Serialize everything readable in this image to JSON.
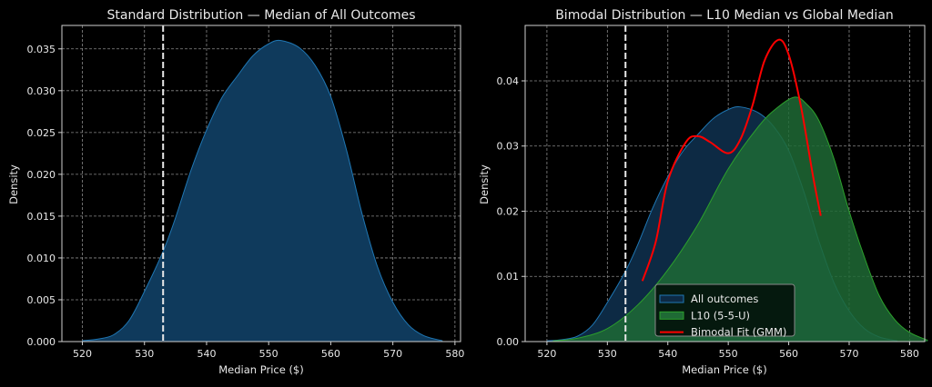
{
  "chart_data": [
    {
      "type": "area",
      "title": "Standard Distribution — Median of All Outcomes",
      "xlabel": "Median Price ($)",
      "ylabel": "Density",
      "xlim": [
        516.7,
        580.9
      ],
      "ylim": [
        0,
        0.0378
      ],
      "xticks": [
        520,
        530,
        540,
        550,
        560,
        570,
        580
      ],
      "yticks": [
        0.0,
        0.005,
        0.01,
        0.015,
        0.02,
        0.025,
        0.03,
        0.035
      ],
      "ytick_labels": [
        "0.000",
        "0.005",
        "0.010",
        "0.015",
        "0.020",
        "0.025",
        "0.030",
        "0.035"
      ],
      "grid": true,
      "vline": {
        "x": 533,
        "style": "dashed",
        "color": "#e8e8e8"
      },
      "series": [
        {
          "color": "#1f77b4",
          "fill": "#0f3a5c",
          "x": [
            520,
            522.5,
            525,
            527.5,
            530,
            533,
            535,
            537.5,
            540,
            542.5,
            545,
            547.5,
            550,
            552,
            555,
            557.5,
            560,
            562.5,
            565,
            567.5,
            570,
            572.5,
            575,
            578
          ],
          "y": [
            0.0001,
            0.0003,
            0.0008,
            0.0025,
            0.006,
            0.0108,
            0.0148,
            0.0205,
            0.0253,
            0.0292,
            0.0318,
            0.0342,
            0.0356,
            0.036,
            0.0351,
            0.033,
            0.0293,
            0.023,
            0.0154,
            0.009,
            0.0047,
            0.002,
            0.0007,
            0.0001
          ]
        }
      ]
    },
    {
      "type": "area",
      "title": "Bimodal Distribution — L10 Median vs Global Median",
      "xlabel": "Median Price ($)",
      "ylabel": "Density",
      "xlim": [
        516.4,
        582.5
      ],
      "ylim": [
        0,
        0.0485
      ],
      "xticks": [
        520,
        530,
        540,
        550,
        560,
        570,
        580
      ],
      "yticks": [
        0.0,
        0.01,
        0.02,
        0.03,
        0.04
      ],
      "ytick_labels": [
        "0.00",
        "0.01",
        "0.02",
        "0.03",
        "0.04"
      ],
      "grid": true,
      "legend": "lower-center",
      "vline": {
        "x": 533,
        "style": "dashed",
        "color": "#e8e8e8"
      },
      "series": [
        {
          "name": "All outcomes",
          "kind": "area",
          "color": "#1f77b4",
          "fill": "#0d2a44",
          "x": [
            520,
            522.5,
            525,
            527.5,
            530,
            533,
            535,
            537.5,
            540,
            542.5,
            545,
            547.5,
            550,
            552,
            555,
            557.5,
            560,
            562.5,
            565,
            567.5,
            570,
            572.5,
            575,
            578
          ],
          "y": [
            0.0001,
            0.0003,
            0.0008,
            0.0025,
            0.006,
            0.0108,
            0.0148,
            0.0205,
            0.0253,
            0.0292,
            0.0318,
            0.0342,
            0.0356,
            0.036,
            0.0351,
            0.033,
            0.0293,
            0.023,
            0.0154,
            0.009,
            0.0047,
            0.002,
            0.0007,
            0.0001
          ]
        },
        {
          "name": "L10 (5-5-U)",
          "kind": "area",
          "color": "#2ca02c",
          "fill": "#1f6a35",
          "x": [
            521,
            525,
            530,
            535,
            540,
            545,
            550,
            555,
            558,
            561,
            563,
            565,
            567.5,
            570,
            572.5,
            575,
            577.5,
            580,
            583
          ],
          "y": [
            0.0001,
            0.0005,
            0.002,
            0.0056,
            0.011,
            0.018,
            0.0265,
            0.033,
            0.0358,
            0.0375,
            0.0364,
            0.0339,
            0.028,
            0.02,
            0.013,
            0.007,
            0.0034,
            0.0014,
            0.0002
          ]
        },
        {
          "name": "Bimodal Fit (GMM)",
          "kind": "line",
          "color": "#ff0000",
          "x": [
            535.8,
            538,
            540,
            543,
            545,
            547,
            550,
            552,
            554,
            556,
            558.3,
            560,
            562,
            564,
            565.3
          ],
          "y": [
            0.0093,
            0.0153,
            0.0246,
            0.0306,
            0.0315,
            0.0306,
            0.0289,
            0.031,
            0.0362,
            0.0431,
            0.0463,
            0.044,
            0.0362,
            0.0255,
            0.0193
          ]
        }
      ]
    }
  ]
}
